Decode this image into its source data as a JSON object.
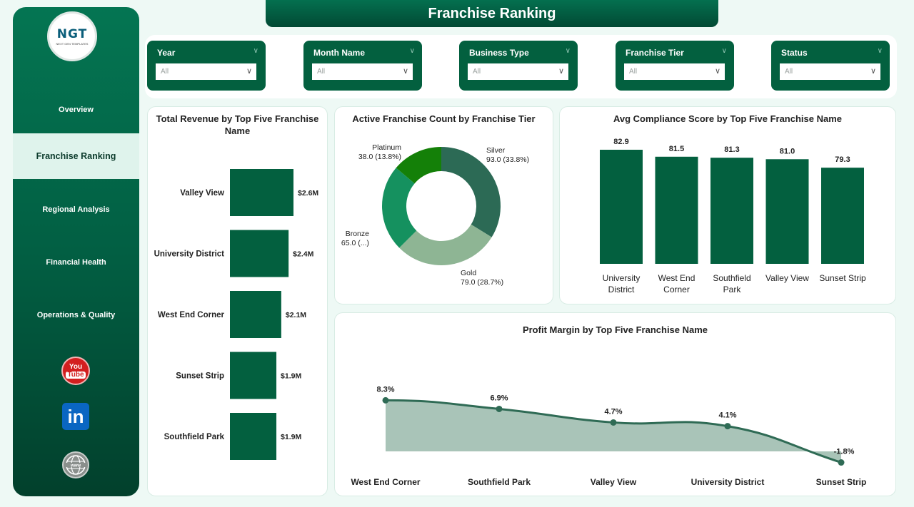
{
  "header": {
    "title": "Franchise Ranking"
  },
  "logo": {
    "main": "NGT",
    "sub": "NEXT GEN TEMPLATES"
  },
  "sidebar": {
    "items": [
      {
        "label": "Overview"
      },
      {
        "label": "Franchise Ranking"
      },
      {
        "label": "Regional Analysis"
      },
      {
        "label": "Financial Health"
      },
      {
        "label": "Operations & Quality"
      }
    ],
    "social": [
      {
        "icon": "youtube-icon",
        "line1": "You",
        "line2": "Tube"
      },
      {
        "icon": "linkedin-icon",
        "text": "in"
      },
      {
        "icon": "globe-icon",
        "text": "www"
      }
    ]
  },
  "filters": [
    {
      "label": "Year",
      "value": "All"
    },
    {
      "label": "Month Name",
      "value": "All"
    },
    {
      "label": "Business Type",
      "value": "All"
    },
    {
      "label": "Franchise Tier",
      "value": "All"
    },
    {
      "label": "Status",
      "value": "All"
    }
  ],
  "colors": {
    "primary": "#03603f",
    "bar": "#03603f",
    "area": "#a9c4b8",
    "line": "#2f6b55"
  },
  "charts": {
    "revenue": {
      "title": "Total Revenue by Top Five Franchise Name",
      "chart_data": {
        "type": "bar",
        "orientation": "horizontal",
        "categories": [
          "Valley View",
          "University District",
          "West End Corner",
          "Sunset Strip",
          "Southfield Park"
        ],
        "values": [
          2.6,
          2.4,
          2.1,
          1.9,
          1.9
        ],
        "value_labels": [
          "$2.6M",
          "$2.4M",
          "$2.1M",
          "$1.9M",
          "$1.9M"
        ],
        "unit": "$M"
      }
    },
    "tier": {
      "title": "Active Franchise Count by Franchise Tier",
      "chart_data": {
        "type": "pie",
        "donut": true,
        "slices": [
          {
            "name": "Silver",
            "value": 93.0,
            "label": "93.0 (33.8%)",
            "color": "#2c6a55"
          },
          {
            "name": "Gold",
            "value": 79.0,
            "label": "79.0 (28.7%)",
            "color": "#8eb594"
          },
          {
            "name": "Bronze",
            "value": 65.0,
            "label": "65.0 (...)",
            "color": "#15915f"
          },
          {
            "name": "Platinum",
            "value": 38.0,
            "label": "38.0 (13.8%)",
            "color": "#148008"
          }
        ]
      }
    },
    "compliance": {
      "title": "Avg Compliance Score by Top Five Franchise Name",
      "chart_data": {
        "type": "bar",
        "categories": [
          "University District",
          "West End Corner",
          "Southfield Park",
          "Valley View",
          "Sunset Strip"
        ],
        "category_lines": [
          [
            "University",
            "District"
          ],
          [
            "West End",
            "Corner"
          ],
          [
            "Southfield",
            "Park"
          ],
          [
            "Valley View"
          ],
          [
            "Sunset Strip"
          ]
        ],
        "values": [
          82.9,
          81.5,
          81.3,
          81.0,
          79.3
        ],
        "value_labels": [
          "82.9",
          "81.5",
          "81.3",
          "81.0",
          "79.3"
        ]
      }
    },
    "margin": {
      "title": "Profit Margin by Top Five Franchise Name",
      "chart_data": {
        "type": "area",
        "categories": [
          "West End Corner",
          "Southfield Park",
          "Valley View",
          "University District",
          "Sunset Strip"
        ],
        "values": [
          8.3,
          6.9,
          4.7,
          4.1,
          -1.8
        ],
        "value_labels": [
          "8.3%",
          "6.9%",
          "4.7%",
          "4.1%",
          "-1.8%"
        ],
        "unit": "%"
      }
    }
  }
}
